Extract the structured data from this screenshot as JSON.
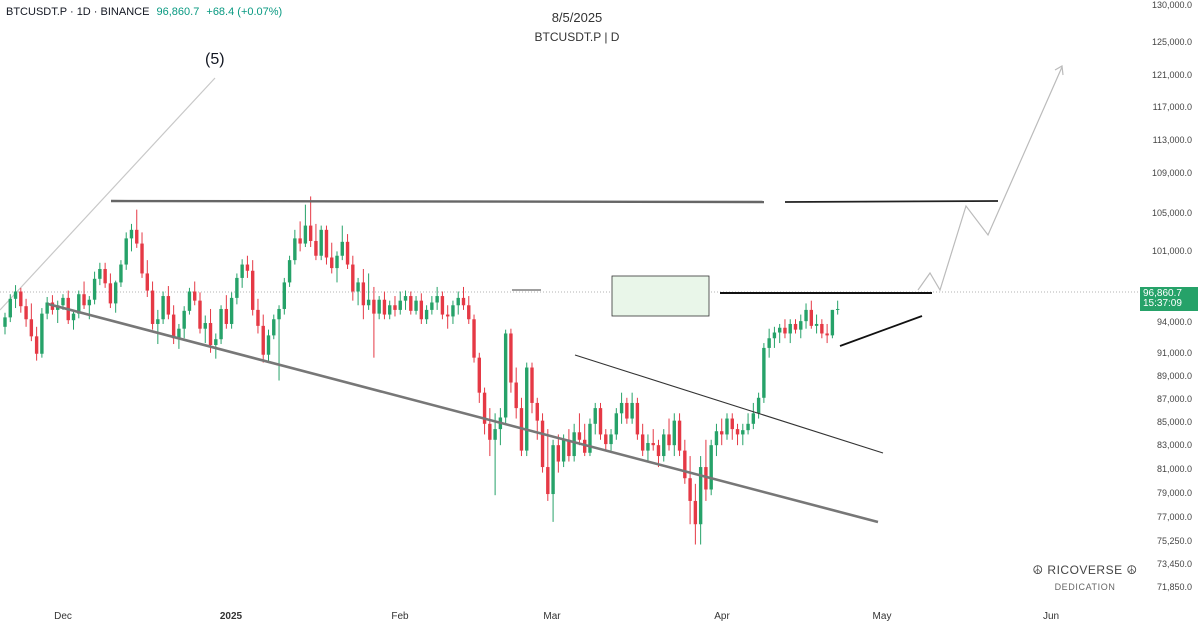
{
  "header": {
    "symbol_line": "BTCUSDT.P · 1D · BINANCE",
    "price": "96,860.7",
    "change": "+68.4 (+0.07%)"
  },
  "title": "8/5/2025",
  "subtitle": "BTCUSDT.P | D",
  "wave_label": "(5)",
  "price_tag": {
    "price": "96,860.7",
    "countdown": "15:37:09",
    "color": "#26a269"
  },
  "brand": {
    "name": "☮ RICOVERSE ☮",
    "tagline": "DEDICATION"
  },
  "colors": {
    "up": "#26a269",
    "down": "#e53945",
    "trend": "#777777",
    "line": "#111111",
    "projection": "#bbbbbb"
  },
  "chart_data": {
    "type": "candlestick",
    "y_axis": {
      "ticks": [
        "130,000.0",
        "125,000.0",
        "121,000.0",
        "117,000.0",
        "113,000.0",
        "109,000.0",
        "105,000.0",
        "101,000.0",
        "94,000.0",
        "91,000.0",
        "89,000.0",
        "87,000.0",
        "85,000.0",
        "83,000.0",
        "81,000.0",
        "79,000.0",
        "77,000.0",
        "75,250.0",
        "73,450.0",
        "71,850.0"
      ],
      "scale": "log"
    },
    "x_axis": {
      "ticks": [
        "Dec",
        "2025",
        "Feb",
        "Mar",
        "Apr",
        "May",
        "Jun"
      ]
    },
    "current_price": 96860.7,
    "candles": [
      [
        95000,
        96500,
        94200,
        96000
      ],
      [
        96000,
        98500,
        95500,
        98000
      ],
      [
        98000,
        99500,
        97000,
        98800
      ],
      [
        98800,
        99200,
        96500,
        97200
      ],
      [
        97200,
        98000,
        95000,
        95800
      ],
      [
        95800,
        97500,
        93500,
        94000
      ],
      [
        94000,
        95000,
        91500,
        92200
      ],
      [
        92200,
        97000,
        91800,
        96400
      ],
      [
        96400,
        98200,
        95800,
        97600
      ],
      [
        97600,
        98400,
        96300,
        96800
      ],
      [
        96800,
        97800,
        95400,
        97300
      ],
      [
        97300,
        98500,
        96800,
        98100
      ],
      [
        98100,
        98900,
        95300,
        95700
      ],
      [
        95700,
        96700,
        94700,
        96400
      ],
      [
        96400,
        98900,
        95900,
        98500
      ],
      [
        98500,
        99900,
        96900,
        97300
      ],
      [
        97300,
        98300,
        95800,
        97900
      ],
      [
        97900,
        101000,
        97400,
        100200
      ],
      [
        100200,
        102000,
        99500,
        101300
      ],
      [
        101300,
        102000,
        99200,
        99700
      ],
      [
        99700,
        100800,
        97000,
        97500
      ],
      [
        97500,
        100000,
        96500,
        99800
      ],
      [
        99800,
        102300,
        99300,
        101800
      ],
      [
        101800,
        105500,
        101200,
        104800
      ],
      [
        104800,
        106500,
        103300,
        105800
      ],
      [
        105800,
        108200,
        103700,
        104200
      ],
      [
        104200,
        105500,
        100300,
        100800
      ],
      [
        100800,
        102300,
        98200,
        98900
      ],
      [
        98900,
        99900,
        94700,
        95300
      ],
      [
        95300,
        96800,
        93200,
        95800
      ],
      [
        95800,
        98800,
        95300,
        98300
      ],
      [
        98300,
        99400,
        95800,
        96300
      ],
      [
        96300,
        97300,
        93200,
        93800
      ],
      [
        93800,
        95300,
        92700,
        94800
      ],
      [
        94800,
        97200,
        93800,
        96700
      ],
      [
        96700,
        99200,
        96300,
        98800
      ],
      [
        98800,
        99900,
        97300,
        97800
      ],
      [
        97800,
        98700,
        94300,
        94800
      ],
      [
        94800,
        96200,
        93300,
        95400
      ],
      [
        95400,
        96900,
        92300,
        93100
      ],
      [
        93100,
        94300,
        91700,
        93700
      ],
      [
        93700,
        97300,
        93200,
        96900
      ],
      [
        96900,
        98400,
        94800,
        95300
      ],
      [
        95300,
        98700,
        94800,
        98100
      ],
      [
        98100,
        100800,
        97400,
        100300
      ],
      [
        100300,
        102400,
        99200,
        101800
      ],
      [
        101800,
        102800,
        100300,
        101100
      ],
      [
        101100,
        102300,
        96200,
        96800
      ],
      [
        96800,
        98000,
        94300,
        95100
      ],
      [
        95100,
        96300,
        91300,
        92100
      ],
      [
        92100,
        94700,
        91400,
        94100
      ],
      [
        94100,
        96300,
        93700,
        95800
      ],
      [
        95800,
        97300,
        89500,
        96900
      ],
      [
        96900,
        100300,
        96300,
        99800
      ],
      [
        99800,
        102800,
        99300,
        102300
      ],
      [
        102300,
        105800,
        101800,
        104800
      ],
      [
        104800,
        106800,
        103300,
        104200
      ],
      [
        104200,
        108800,
        103800,
        106300
      ],
      [
        106300,
        109800,
        103800,
        104500
      ],
      [
        104500,
        106500,
        102300,
        102800
      ],
      [
        102800,
        106300,
        102300,
        105800
      ],
      [
        105800,
        106300,
        101800,
        102600
      ],
      [
        102600,
        104300,
        100800,
        101400
      ],
      [
        101400,
        103300,
        99800,
        102800
      ],
      [
        102800,
        106300,
        102300,
        104400
      ],
      [
        104400,
        105300,
        101300,
        101800
      ],
      [
        101800,
        102800,
        97800,
        98800
      ],
      [
        98800,
        100300,
        97300,
        99800
      ],
      [
        99800,
        101300,
        95800,
        97300
      ],
      [
        97300,
        100800,
        96800,
        97900
      ],
      [
        97900,
        99300,
        91800,
        96400
      ],
      [
        96400,
        98300,
        95800,
        97900
      ],
      [
        97900,
        98800,
        95800,
        96300
      ],
      [
        96300,
        97800,
        95800,
        97300
      ],
      [
        97300,
        98300,
        96100,
        96800
      ],
      [
        96800,
        98800,
        96300,
        97800
      ],
      [
        97800,
        98900,
        96800,
        98300
      ],
      [
        98300,
        98800,
        96300,
        96700
      ],
      [
        96700,
        98300,
        96300,
        97800
      ],
      [
        97800,
        98600,
        95300,
        95800
      ],
      [
        95800,
        97300,
        95300,
        96800
      ],
      [
        96800,
        98300,
        96300,
        97600
      ],
      [
        97600,
        99300,
        96800,
        98300
      ],
      [
        98300,
        98800,
        95800,
        96300
      ],
      [
        96300,
        97300,
        94800,
        96100
      ],
      [
        96100,
        97800,
        95300,
        97300
      ],
      [
        97300,
        98800,
        96300,
        98100
      ],
      [
        98100,
        99300,
        96800,
        97300
      ],
      [
        97300,
        98300,
        95300,
        95800
      ],
      [
        95800,
        96300,
        91300,
        91800
      ],
      [
        91800,
        92300,
        87300,
        88300
      ],
      [
        88300,
        88800,
        84300,
        85300
      ],
      [
        85300,
        86800,
        82300,
        83800
      ],
      [
        83800,
        86300,
        78800,
        84800
      ],
      [
        84800,
        86800,
        83300,
        85900
      ],
      [
        85900,
        94700,
        85300,
        94300
      ],
      [
        94300,
        94800,
        88300,
        89300
      ],
      [
        89300,
        90800,
        85800,
        86800
      ],
      [
        86800,
        87800,
        82300,
        82800
      ],
      [
        82800,
        91300,
        82300,
        90800
      ],
      [
        90800,
        91300,
        86300,
        87300
      ],
      [
        87300,
        87800,
        83800,
        85600
      ],
      [
        85600,
        86300,
        80800,
        81300
      ],
      [
        81300,
        84800,
        78300,
        78900
      ],
      [
        78900,
        83800,
        76500,
        83300
      ],
      [
        83300,
        84300,
        80800,
        81800
      ],
      [
        81800,
        84300,
        81300,
        83800
      ],
      [
        83800,
        84800,
        81800,
        82300
      ],
      [
        82300,
        85300,
        81800,
        84500
      ],
      [
        84500,
        86300,
        83300,
        83800
      ],
      [
        83800,
        85300,
        82300,
        82600
      ],
      [
        82600,
        85800,
        82300,
        85300
      ],
      [
        85300,
        87300,
        84300,
        86800
      ],
      [
        86800,
        87300,
        83800,
        84300
      ],
      [
        84300,
        84800,
        82800,
        83400
      ],
      [
        83400,
        84800,
        82800,
        84300
      ],
      [
        84300,
        86800,
        83800,
        86300
      ],
      [
        86300,
        88300,
        85300,
        87300
      ],
      [
        87300,
        87800,
        85300,
        85800
      ],
      [
        85800,
        88300,
        85300,
        87300
      ],
      [
        87300,
        87800,
        83800,
        84300
      ],
      [
        84300,
        85300,
        82300,
        82800
      ],
      [
        82800,
        84300,
        81800,
        83500
      ],
      [
        83500,
        84800,
        82800,
        83300
      ],
      [
        83300,
        83800,
        81300,
        82300
      ],
      [
        82300,
        84800,
        81800,
        84300
      ],
      [
        84300,
        85800,
        82800,
        83300
      ],
      [
        83300,
        86300,
        82300,
        85600
      ],
      [
        85600,
        86300,
        82300,
        82800
      ],
      [
        82800,
        83800,
        79800,
        80300
      ],
      [
        80300,
        82300,
        76300,
        78300
      ],
      [
        78300,
        79800,
        74600,
        76300
      ],
      [
        76300,
        82300,
        74600,
        81300
      ],
      [
        81300,
        83800,
        78300,
        79300
      ],
      [
        79300,
        83800,
        78800,
        83300
      ],
      [
        83300,
        85300,
        82300,
        84600
      ],
      [
        84600,
        85800,
        83300,
        84300
      ],
      [
        84300,
        86300,
        83800,
        85800
      ],
      [
        85800,
        86300,
        83800,
        84800
      ],
      [
        84800,
        85300,
        83300,
        84300
      ],
      [
        84300,
        85300,
        83300,
        84700
      ],
      [
        84700,
        86300,
        84300,
        85300
      ],
      [
        85300,
        87300,
        84800,
        86300
      ],
      [
        86300,
        88300,
        85800,
        87800
      ],
      [
        87800,
        93300,
        87300,
        92800
      ],
      [
        92800,
        94800,
        91800,
        93800
      ],
      [
        93800,
        95000,
        92800,
        94400
      ],
      [
        94400,
        95300,
        93300,
        94900
      ],
      [
        94900,
        95800,
        93800,
        94300
      ],
      [
        94300,
        95800,
        93300,
        95300
      ],
      [
        95300,
        95800,
        94300,
        94700
      ],
      [
        94700,
        96300,
        93800,
        95600
      ],
      [
        95600,
        97500,
        94800,
        96800
      ],
      [
        96800,
        97800,
        94800,
        95100
      ],
      [
        95100,
        96300,
        94300,
        95300
      ],
      [
        95300,
        95800,
        93800,
        94300
      ],
      [
        94300,
        95300,
        93300,
        94100
      ],
      [
        94100,
        96800,
        93800,
        96800
      ],
      [
        96800,
        97800,
        96300,
        96900
      ]
    ],
    "annotations": [
      {
        "type": "wave_label",
        "text": "(5)"
      },
      {
        "type": "resistance_line",
        "price": 106300
      },
      {
        "type": "resistance_line",
        "price": 106300
      },
      {
        "type": "support_trendline",
        "from_price": 95300,
        "to_price": 77000
      },
      {
        "type": "descending_trendline",
        "from_price": 91000,
        "to_price": 82000
      },
      {
        "type": "horizontal_line",
        "price": 96860
      },
      {
        "type": "rectangle_zone",
        "price_top": 98400,
        "price_bottom": 95000
      },
      {
        "type": "projection_path"
      }
    ]
  }
}
